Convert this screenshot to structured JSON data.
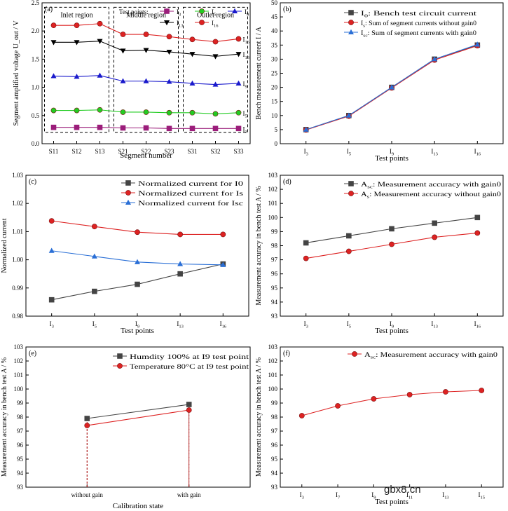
{
  "watermark": "gbx8.cn",
  "chart_data": [
    {
      "id": "a",
      "panel_label": "(a)",
      "type": "line",
      "xlabel": "Segment number",
      "ylabel": "Segment amplified voltage U_out / V",
      "ylim": [
        0,
        2.5
      ],
      "yticks": [
        "0.0",
        "0.5",
        "1.0",
        "1.5",
        "2.0",
        "2.5"
      ],
      "categories": [
        "S11",
        "S12",
        "S13",
        "S21",
        "S22",
        "S23",
        "S31",
        "S32",
        "S33"
      ],
      "legend_title": "Test points:",
      "regions": [
        "Inlet region",
        "Middle region",
        "Outlet region"
      ],
      "series": [
        {
          "name": "I3",
          "end_label": "I3",
          "color": "#9b1d7a",
          "marker": "square",
          "values": [
            0.29,
            0.29,
            0.29,
            0.28,
            0.28,
            0.27,
            0.27,
            0.27,
            0.27
          ]
        },
        {
          "name": "I5",
          "end_label": "I5",
          "color": "#22cc22",
          "marker": "circle",
          "values": [
            0.59,
            0.59,
            0.6,
            0.56,
            0.56,
            0.55,
            0.55,
            0.53,
            0.55
          ]
        },
        {
          "name": "I9",
          "end_label": "I9",
          "color": "#1a1acc",
          "marker": "triangle",
          "values": [
            1.2,
            1.19,
            1.21,
            1.11,
            1.11,
            1.1,
            1.07,
            1.05,
            1.07
          ]
        },
        {
          "name": "I13",
          "end_label": "I13",
          "color": "#000000",
          "marker": "triangle-down",
          "values": [
            1.8,
            1.8,
            1.82,
            1.65,
            1.66,
            1.63,
            1.59,
            1.55,
            1.59
          ]
        },
        {
          "name": "I16",
          "end_label": "I16",
          "color": "#dd2222",
          "marker": "circle",
          "values": [
            2.1,
            2.1,
            2.13,
            1.94,
            1.94,
            1.9,
            1.85,
            1.81,
            1.86
          ]
        }
      ]
    },
    {
      "id": "b",
      "panel_label": "(b)",
      "type": "line",
      "xlabel": "Test points",
      "ylabel": "Bench measurement current I / A",
      "ylim": [
        0,
        50
      ],
      "yticks": [
        "0",
        "5",
        "10",
        "15",
        "20",
        "25",
        "30",
        "35",
        "40",
        "45",
        "50"
      ],
      "categories": [
        "I3",
        "I5",
        "I9",
        "I13",
        "I16"
      ],
      "series": [
        {
          "name": "I0: Bench test circuit current",
          "color": "#444444",
          "marker": "square",
          "values": [
            5.0,
            10.0,
            20.0,
            30.0,
            35.0
          ]
        },
        {
          "name": "Is: Sum of segment currents without gain0",
          "color": "#dd2222",
          "marker": "circle",
          "values": [
            4.9,
            9.8,
            19.8,
            29.7,
            34.8
          ]
        },
        {
          "name": "Isc: Sum of segment currents with gain0",
          "color": "#2a6fd6",
          "marker": "triangle",
          "values": [
            5.0,
            10.0,
            20.0,
            30.0,
            35.2
          ]
        }
      ]
    },
    {
      "id": "c",
      "panel_label": "(c)",
      "type": "line",
      "xlabel": "Test points",
      "ylabel": "Normalized current",
      "ylim": [
        0.98,
        1.03
      ],
      "yticks": [
        "0.98",
        "0.99",
        "1.00",
        "1.01",
        "1.02",
        "1.03"
      ],
      "categories": [
        "I3",
        "I5",
        "I9",
        "I13",
        "I16"
      ],
      "series": [
        {
          "name": "Normalized current for I0",
          "color": "#444444",
          "marker": "square",
          "values": [
            0.9858,
            0.9888,
            0.9913,
            0.995,
            0.9985
          ]
        },
        {
          "name": "Normalized current for Is",
          "color": "#dd2222",
          "marker": "circle",
          "values": [
            1.0138,
            1.0118,
            1.0098,
            1.009,
            1.009
          ]
        },
        {
          "name": "Normalized current for Isc",
          "color": "#2a6fd6",
          "marker": "triangle",
          "values": [
            1.0032,
            1.0012,
            0.9992,
            0.9985,
            0.9982
          ]
        }
      ]
    },
    {
      "id": "d",
      "panel_label": "(d)",
      "type": "line",
      "xlabel": "Test points",
      "ylabel": "Measurement accuracy in bench test A / %",
      "ylim": [
        93,
        103
      ],
      "yticks": [
        "93",
        "94",
        "95",
        "96",
        "97",
        "98",
        "99",
        "100",
        "101",
        "102",
        "103"
      ],
      "categories": [
        "I3",
        "I5",
        "I9",
        "I13",
        "I16"
      ],
      "series": [
        {
          "name": "Asc: Measurement accuracy with gain0",
          "color": "#444444",
          "marker": "square",
          "values": [
            98.2,
            98.7,
            99.2,
            99.6,
            100.0
          ]
        },
        {
          "name": "As: Measurement accuracy without gain0",
          "color": "#dd2222",
          "marker": "circle",
          "values": [
            97.1,
            97.6,
            98.1,
            98.6,
            98.9
          ]
        }
      ]
    },
    {
      "id": "e",
      "panel_label": "(e)",
      "type": "line",
      "xlabel": "Calibration state",
      "ylabel": "Measurement accuracy in bench test A / %",
      "ylim": [
        93,
        103
      ],
      "yticks": [
        "93",
        "94",
        "95",
        "96",
        "97",
        "98",
        "99",
        "100",
        "101",
        "102",
        "103"
      ],
      "categories": [
        "without gain",
        "with gain"
      ],
      "series": [
        {
          "name": "Humdity 100% at I9 test point",
          "color": "#444444",
          "marker": "square",
          "values": [
            97.9,
            98.9
          ]
        },
        {
          "name": "Temperature 80°C at I9 test point",
          "color": "#dd2222",
          "marker": "circle",
          "values": [
            97.4,
            98.5
          ]
        }
      ]
    },
    {
      "id": "f",
      "panel_label": "(f)",
      "type": "line",
      "xlabel": "Test points",
      "ylabel": "Measurement accuracy in bench test A / %",
      "ylim": [
        93,
        103
      ],
      "yticks": [
        "93",
        "94",
        "95",
        "96",
        "97",
        "98",
        "99",
        "100",
        "101",
        "102",
        "103"
      ],
      "categories": [
        "I3",
        "I7",
        "I9",
        "I11",
        "I13",
        "I15"
      ],
      "series": [
        {
          "name": "Asc: Measurement accuracy with gain0",
          "color": "#dd2222",
          "marker": "circle",
          "values": [
            98.1,
            98.8,
            99.3,
            99.6,
            99.8,
            99.9
          ]
        }
      ]
    }
  ]
}
